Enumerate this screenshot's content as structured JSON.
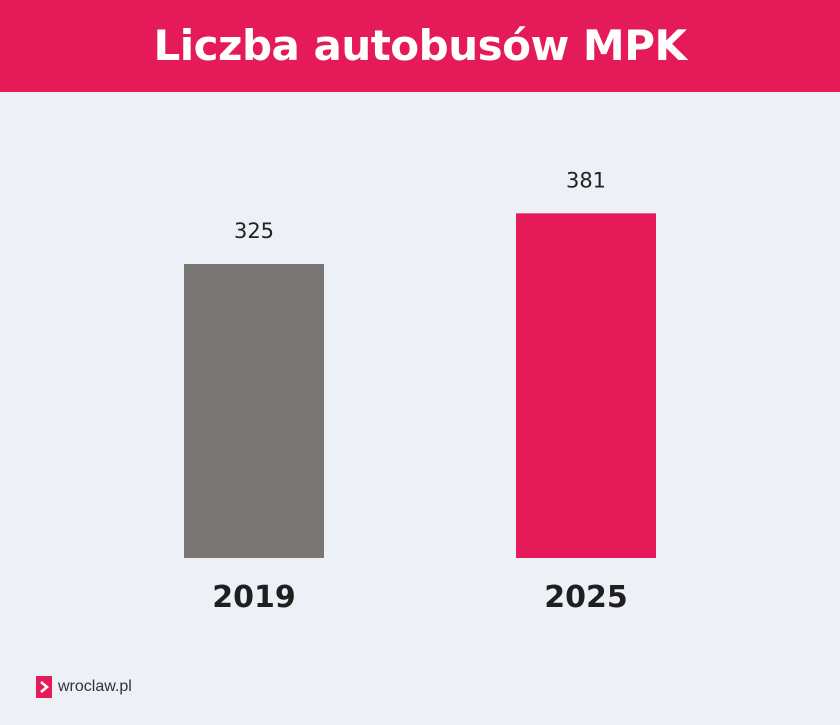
{
  "header": {
    "title": "Liczba autobusów MPK"
  },
  "footer": {
    "logo_text": "wroclaw.pl"
  },
  "colors": {
    "accent": "#e51a58",
    "bar_2019": "#7a7674",
    "bar_2025": "#e51a58",
    "background": "#edf0f6"
  },
  "chart_data": {
    "type": "bar",
    "title": "Liczba autobusów MPK",
    "categories": [
      "2019",
      "2025"
    ],
    "values": [
      325,
      381
    ],
    "data_labels": [
      "325",
      "381"
    ],
    "bar_colors": [
      "#7a7674",
      "#e51a58"
    ],
    "ylim": [
      0,
      400
    ],
    "grid": false,
    "legend": "none"
  }
}
